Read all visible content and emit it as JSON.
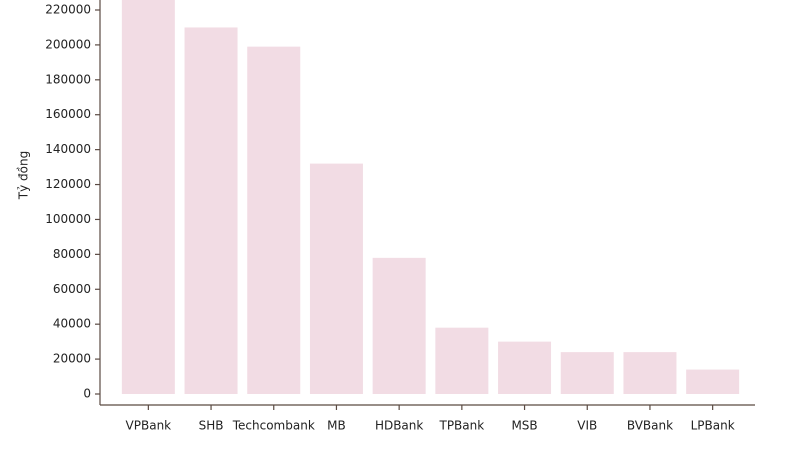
{
  "chart_data": {
    "type": "bar",
    "y_label": "Tỷ đồng",
    "categories": [
      "VPBank",
      "SHB",
      "Techcombank",
      "MB",
      "HDBank",
      "TPBank",
      "MSB",
      "VIB",
      "BVBank",
      "LPBank"
    ],
    "values": [
      226000,
      210000,
      199000,
      132000,
      78000,
      38000,
      30000,
      24000,
      24000,
      14000
    ],
    "color": "#f2dce4",
    "ylim": [
      0,
      226000
    ],
    "yticks": [
      0,
      20000,
      40000,
      60000,
      80000,
      100000,
      120000,
      140000,
      160000,
      180000,
      200000,
      220000
    ]
  }
}
